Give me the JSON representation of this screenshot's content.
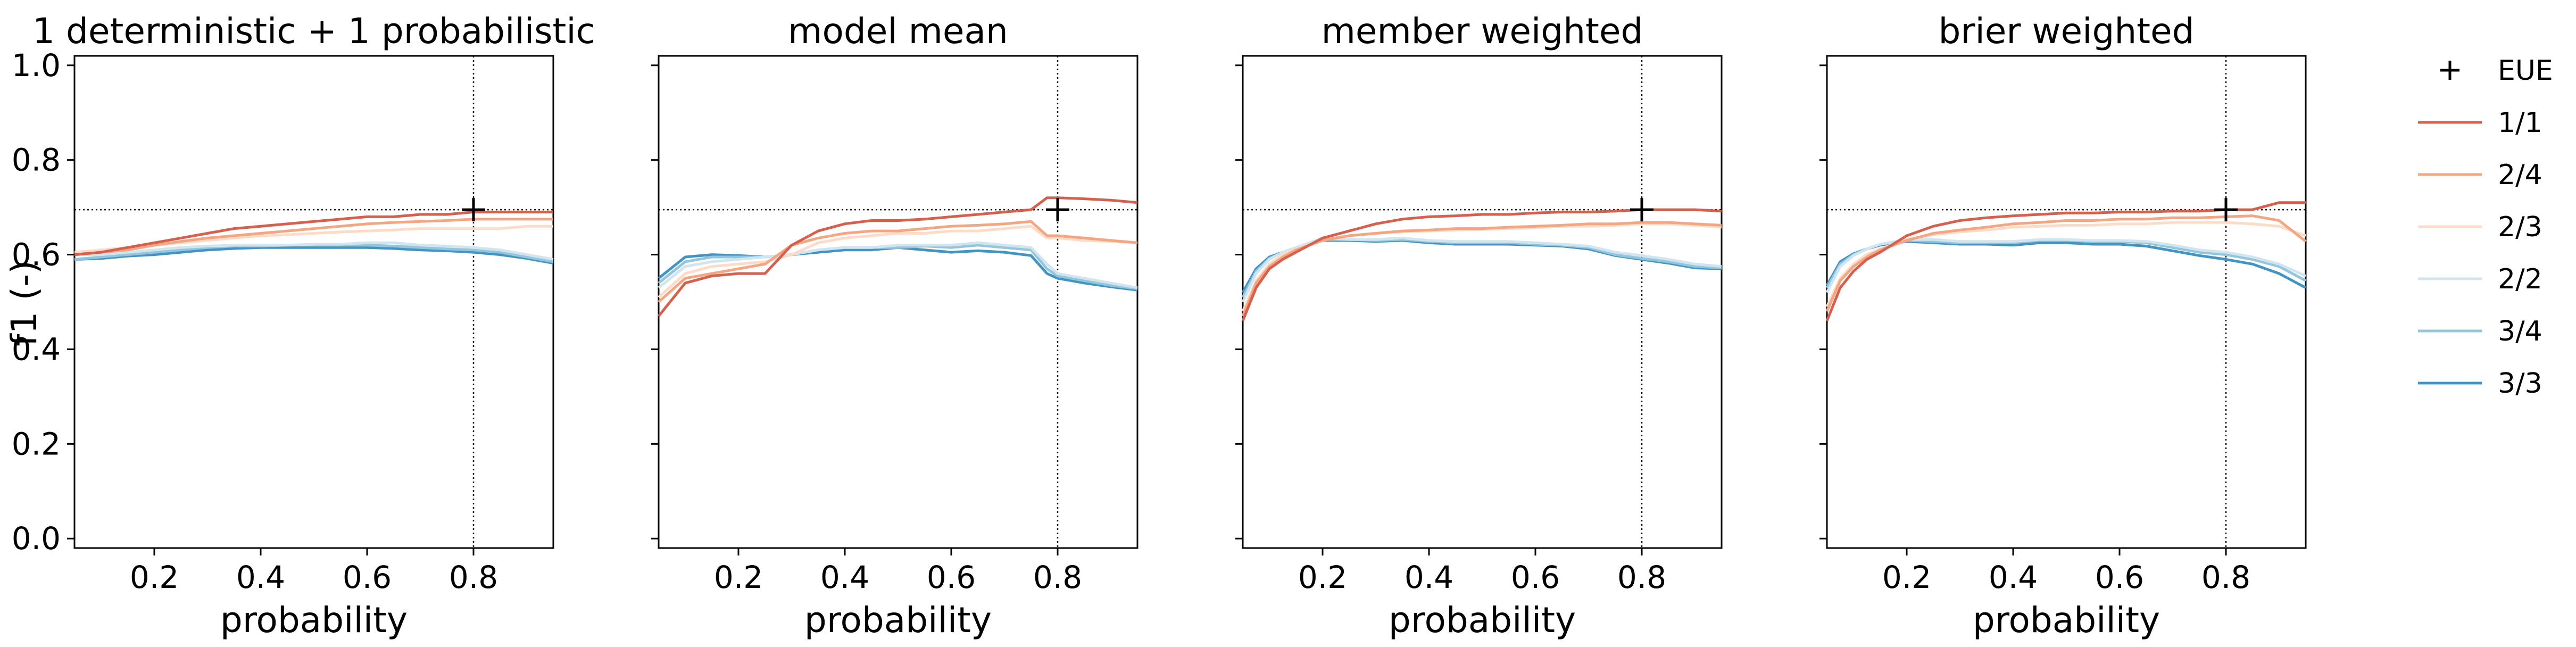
{
  "figure": {
    "ylabel": "f1 (-)"
  },
  "chart_data": [
    {
      "type": "line",
      "title": "1 deterministic + 1 probabilistic",
      "xlabel": "probability",
      "ylabel": "f1 (-)",
      "xlim": [
        0.05,
        0.95
      ],
      "ylim": [
        -0.02,
        1.02
      ],
      "xticks": [
        0.2,
        0.4,
        0.6,
        0.8
      ],
      "yticks": [
        0.0,
        0.2,
        0.4,
        0.6,
        0.8,
        1.0
      ],
      "reference": {
        "x": 0.8,
        "y": 0.695
      },
      "x": [
        0.05,
        0.1,
        0.15,
        0.2,
        0.25,
        0.3,
        0.35,
        0.4,
        0.45,
        0.5,
        0.55,
        0.6,
        0.65,
        0.7,
        0.75,
        0.8,
        0.85,
        0.9,
        0.95
      ],
      "series": [
        {
          "name": "1/1",
          "values": [
            0.6,
            0.605,
            0.615,
            0.625,
            0.635,
            0.645,
            0.655,
            0.66,
            0.665,
            0.67,
            0.675,
            0.68,
            0.68,
            0.685,
            0.685,
            0.69,
            0.69,
            0.69,
            0.69
          ]
        },
        {
          "name": "2/4",
          "values": [
            0.6,
            0.605,
            0.61,
            0.62,
            0.628,
            0.635,
            0.64,
            0.645,
            0.65,
            0.655,
            0.66,
            0.665,
            0.668,
            0.67,
            0.672,
            0.675,
            0.675,
            0.675,
            0.675
          ]
        },
        {
          "name": "2/3",
          "values": [
            0.605,
            0.61,
            0.615,
            0.62,
            0.625,
            0.63,
            0.635,
            0.64,
            0.642,
            0.645,
            0.648,
            0.65,
            0.652,
            0.655,
            0.655,
            0.655,
            0.655,
            0.66,
            0.66
          ]
        },
        {
          "name": "2/2",
          "values": [
            0.6,
            0.6,
            0.605,
            0.61,
            0.615,
            0.618,
            0.62,
            0.62,
            0.62,
            0.622,
            0.622,
            0.625,
            0.625,
            0.62,
            0.618,
            0.615,
            0.61,
            0.6,
            0.59
          ]
        },
        {
          "name": "3/4",
          "values": [
            0.59,
            0.595,
            0.6,
            0.605,
            0.61,
            0.615,
            0.618,
            0.618,
            0.62,
            0.62,
            0.62,
            0.62,
            0.618,
            0.615,
            0.612,
            0.61,
            0.605,
            0.595,
            0.585
          ]
        },
        {
          "name": "3/3",
          "values": [
            0.59,
            0.592,
            0.597,
            0.6,
            0.605,
            0.61,
            0.613,
            0.615,
            0.615,
            0.615,
            0.615,
            0.615,
            0.613,
            0.61,
            0.608,
            0.605,
            0.6,
            0.592,
            0.582
          ]
        }
      ]
    },
    {
      "type": "line",
      "title": "model mean",
      "xlabel": "probability",
      "xlim": [
        0.05,
        0.95
      ],
      "ylim": [
        -0.02,
        1.02
      ],
      "xticks": [
        0.2,
        0.4,
        0.6,
        0.8
      ],
      "yticks": [
        0.0,
        0.2,
        0.4,
        0.6,
        0.8,
        1.0
      ],
      "reference": {
        "x": 0.8,
        "y": 0.695
      },
      "x": [
        0.05,
        0.1,
        0.15,
        0.2,
        0.25,
        0.3,
        0.35,
        0.4,
        0.45,
        0.5,
        0.55,
        0.6,
        0.65,
        0.7,
        0.75,
        0.78,
        0.8,
        0.85,
        0.9,
        0.95
      ],
      "series": [
        {
          "name": "1/1",
          "values": [
            0.47,
            0.54,
            0.555,
            0.56,
            0.56,
            0.62,
            0.65,
            0.665,
            0.672,
            0.672,
            0.675,
            0.68,
            0.685,
            0.69,
            0.695,
            0.72,
            0.72,
            0.718,
            0.715,
            0.71
          ]
        },
        {
          "name": "2/4",
          "values": [
            0.5,
            0.55,
            0.56,
            0.57,
            0.58,
            0.62,
            0.635,
            0.645,
            0.65,
            0.65,
            0.655,
            0.66,
            0.662,
            0.665,
            0.67,
            0.64,
            0.64,
            0.635,
            0.63,
            0.625
          ]
        },
        {
          "name": "2/3",
          "values": [
            0.51,
            0.56,
            0.575,
            0.58,
            0.585,
            0.6,
            0.625,
            0.635,
            0.64,
            0.645,
            0.645,
            0.65,
            0.65,
            0.655,
            0.66,
            0.635,
            0.635,
            0.63,
            0.628,
            0.625
          ]
        },
        {
          "name": "2/2",
          "values": [
            0.53,
            0.575,
            0.585,
            0.59,
            0.595,
            0.6,
            0.61,
            0.615,
            0.615,
            0.62,
            0.62,
            0.62,
            0.625,
            0.62,
            0.615,
            0.58,
            0.56,
            0.55,
            0.54,
            0.53
          ]
        },
        {
          "name": "3/4",
          "values": [
            0.54,
            0.585,
            0.595,
            0.595,
            0.595,
            0.6,
            0.61,
            0.615,
            0.615,
            0.615,
            0.618,
            0.615,
            0.62,
            0.615,
            0.61,
            0.57,
            0.555,
            0.545,
            0.535,
            0.528
          ]
        },
        {
          "name": "3/3",
          "values": [
            0.55,
            0.595,
            0.6,
            0.598,
            0.595,
            0.6,
            0.605,
            0.61,
            0.61,
            0.615,
            0.61,
            0.605,
            0.608,
            0.605,
            0.598,
            0.56,
            0.55,
            0.54,
            0.532,
            0.525
          ]
        }
      ]
    },
    {
      "type": "line",
      "title": "member weighted",
      "xlabel": "probability",
      "xlim": [
        0.05,
        0.95
      ],
      "ylim": [
        -0.02,
        1.02
      ],
      "xticks": [
        0.2,
        0.4,
        0.6,
        0.8
      ],
      "yticks": [
        0.0,
        0.2,
        0.4,
        0.6,
        0.8,
        1.0
      ],
      "reference": {
        "x": 0.8,
        "y": 0.695
      },
      "x": [
        0.05,
        0.075,
        0.1,
        0.125,
        0.15,
        0.2,
        0.25,
        0.3,
        0.35,
        0.4,
        0.45,
        0.5,
        0.55,
        0.6,
        0.65,
        0.7,
        0.75,
        0.8,
        0.85,
        0.9,
        0.95
      ],
      "series": [
        {
          "name": "1/1",
          "values": [
            0.46,
            0.53,
            0.57,
            0.59,
            0.605,
            0.635,
            0.65,
            0.665,
            0.675,
            0.68,
            0.682,
            0.685,
            0.685,
            0.688,
            0.69,
            0.69,
            0.692,
            0.695,
            0.695,
            0.695,
            0.692
          ]
        },
        {
          "name": "2/4",
          "values": [
            0.47,
            0.54,
            0.575,
            0.595,
            0.61,
            0.63,
            0.64,
            0.645,
            0.65,
            0.652,
            0.655,
            0.655,
            0.658,
            0.66,
            0.662,
            0.665,
            0.665,
            0.668,
            0.668,
            0.665,
            0.662
          ]
        },
        {
          "name": "2/3",
          "values": [
            0.48,
            0.545,
            0.58,
            0.6,
            0.612,
            0.632,
            0.64,
            0.645,
            0.648,
            0.65,
            0.652,
            0.653,
            0.655,
            0.657,
            0.66,
            0.66,
            0.662,
            0.665,
            0.665,
            0.662,
            0.658
          ]
        },
        {
          "name": "2/2",
          "values": [
            0.5,
            0.56,
            0.59,
            0.605,
            0.615,
            0.635,
            0.632,
            0.632,
            0.635,
            0.63,
            0.628,
            0.628,
            0.628,
            0.625,
            0.622,
            0.618,
            0.605,
            0.598,
            0.59,
            0.58,
            0.575
          ]
        },
        {
          "name": "3/4",
          "values": [
            0.51,
            0.565,
            0.592,
            0.605,
            0.615,
            0.632,
            0.632,
            0.63,
            0.632,
            0.628,
            0.625,
            0.625,
            0.625,
            0.622,
            0.62,
            0.615,
            0.6,
            0.592,
            0.585,
            0.575,
            0.572
          ]
        },
        {
          "name": "3/3",
          "values": [
            0.52,
            0.57,
            0.595,
            0.605,
            0.612,
            0.63,
            0.63,
            0.628,
            0.63,
            0.625,
            0.622,
            0.622,
            0.622,
            0.62,
            0.618,
            0.612,
            0.598,
            0.59,
            0.582,
            0.572,
            0.57
          ]
        }
      ]
    },
    {
      "type": "line",
      "title": "brier weighted",
      "xlabel": "probability",
      "xlim": [
        0.05,
        0.95
      ],
      "ylim": [
        -0.02,
        1.02
      ],
      "xticks": [
        0.2,
        0.4,
        0.6,
        0.8
      ],
      "yticks": [
        0.0,
        0.2,
        0.4,
        0.6,
        0.8,
        1.0
      ],
      "reference": {
        "x": 0.8,
        "y": 0.695
      },
      "x": [
        0.05,
        0.075,
        0.1,
        0.125,
        0.15,
        0.2,
        0.25,
        0.3,
        0.35,
        0.4,
        0.45,
        0.5,
        0.55,
        0.6,
        0.65,
        0.7,
        0.75,
        0.8,
        0.85,
        0.9,
        0.95
      ],
      "series": [
        {
          "name": "1/1",
          "values": [
            0.46,
            0.53,
            0.565,
            0.59,
            0.605,
            0.64,
            0.66,
            0.672,
            0.678,
            0.682,
            0.685,
            0.688,
            0.688,
            0.69,
            0.69,
            0.692,
            0.692,
            0.695,
            0.695,
            0.71,
            0.71
          ]
        },
        {
          "name": "2/4",
          "values": [
            0.48,
            0.545,
            0.575,
            0.595,
            0.61,
            0.63,
            0.645,
            0.652,
            0.658,
            0.665,
            0.668,
            0.672,
            0.672,
            0.675,
            0.675,
            0.678,
            0.678,
            0.68,
            0.682,
            0.672,
            0.628
          ]
        },
        {
          "name": "2/3",
          "values": [
            0.49,
            0.55,
            0.58,
            0.6,
            0.612,
            0.632,
            0.642,
            0.648,
            0.652,
            0.658,
            0.66,
            0.662,
            0.662,
            0.665,
            0.665,
            0.668,
            0.668,
            0.668,
            0.665,
            0.66,
            0.64
          ]
        },
        {
          "name": "2/2",
          "values": [
            0.52,
            0.575,
            0.598,
            0.612,
            0.622,
            0.632,
            0.632,
            0.628,
            0.628,
            0.628,
            0.632,
            0.632,
            0.63,
            0.63,
            0.628,
            0.62,
            0.61,
            0.605,
            0.595,
            0.58,
            0.555
          ]
        },
        {
          "name": "3/4",
          "values": [
            0.53,
            0.58,
            0.6,
            0.612,
            0.622,
            0.63,
            0.628,
            0.625,
            0.625,
            0.625,
            0.63,
            0.63,
            0.628,
            0.628,
            0.625,
            0.615,
            0.605,
            0.6,
            0.59,
            0.575,
            0.545
          ]
        },
        {
          "name": "3/3",
          "values": [
            0.535,
            0.585,
            0.602,
            0.612,
            0.62,
            0.628,
            0.625,
            0.622,
            0.622,
            0.62,
            0.625,
            0.625,
            0.622,
            0.622,
            0.618,
            0.608,
            0.598,
            0.59,
            0.58,
            0.56,
            0.53
          ]
        }
      ]
    }
  ],
  "legend": {
    "placement": "outside-right",
    "entries": [
      {
        "label": "EUE",
        "kind": "marker",
        "color": "#000000"
      },
      {
        "label": "1/1",
        "kind": "line",
        "color": "#d6604d"
      },
      {
        "label": "2/4",
        "kind": "line",
        "color": "#f4a582"
      },
      {
        "label": "2/3",
        "kind": "line",
        "color": "#fddbc7"
      },
      {
        "label": "2/2",
        "kind": "line",
        "color": "#d1e5f0"
      },
      {
        "label": "3/4",
        "kind": "line",
        "color": "#92c5de"
      },
      {
        "label": "3/3",
        "kind": "line",
        "color": "#4393c3"
      }
    ]
  },
  "colors": {
    "1/1": "#d6604d",
    "2/4": "#f4a582",
    "2/3": "#fddbc7",
    "2/2": "#d1e5f0",
    "3/4": "#92c5de",
    "3/3": "#4393c3"
  }
}
